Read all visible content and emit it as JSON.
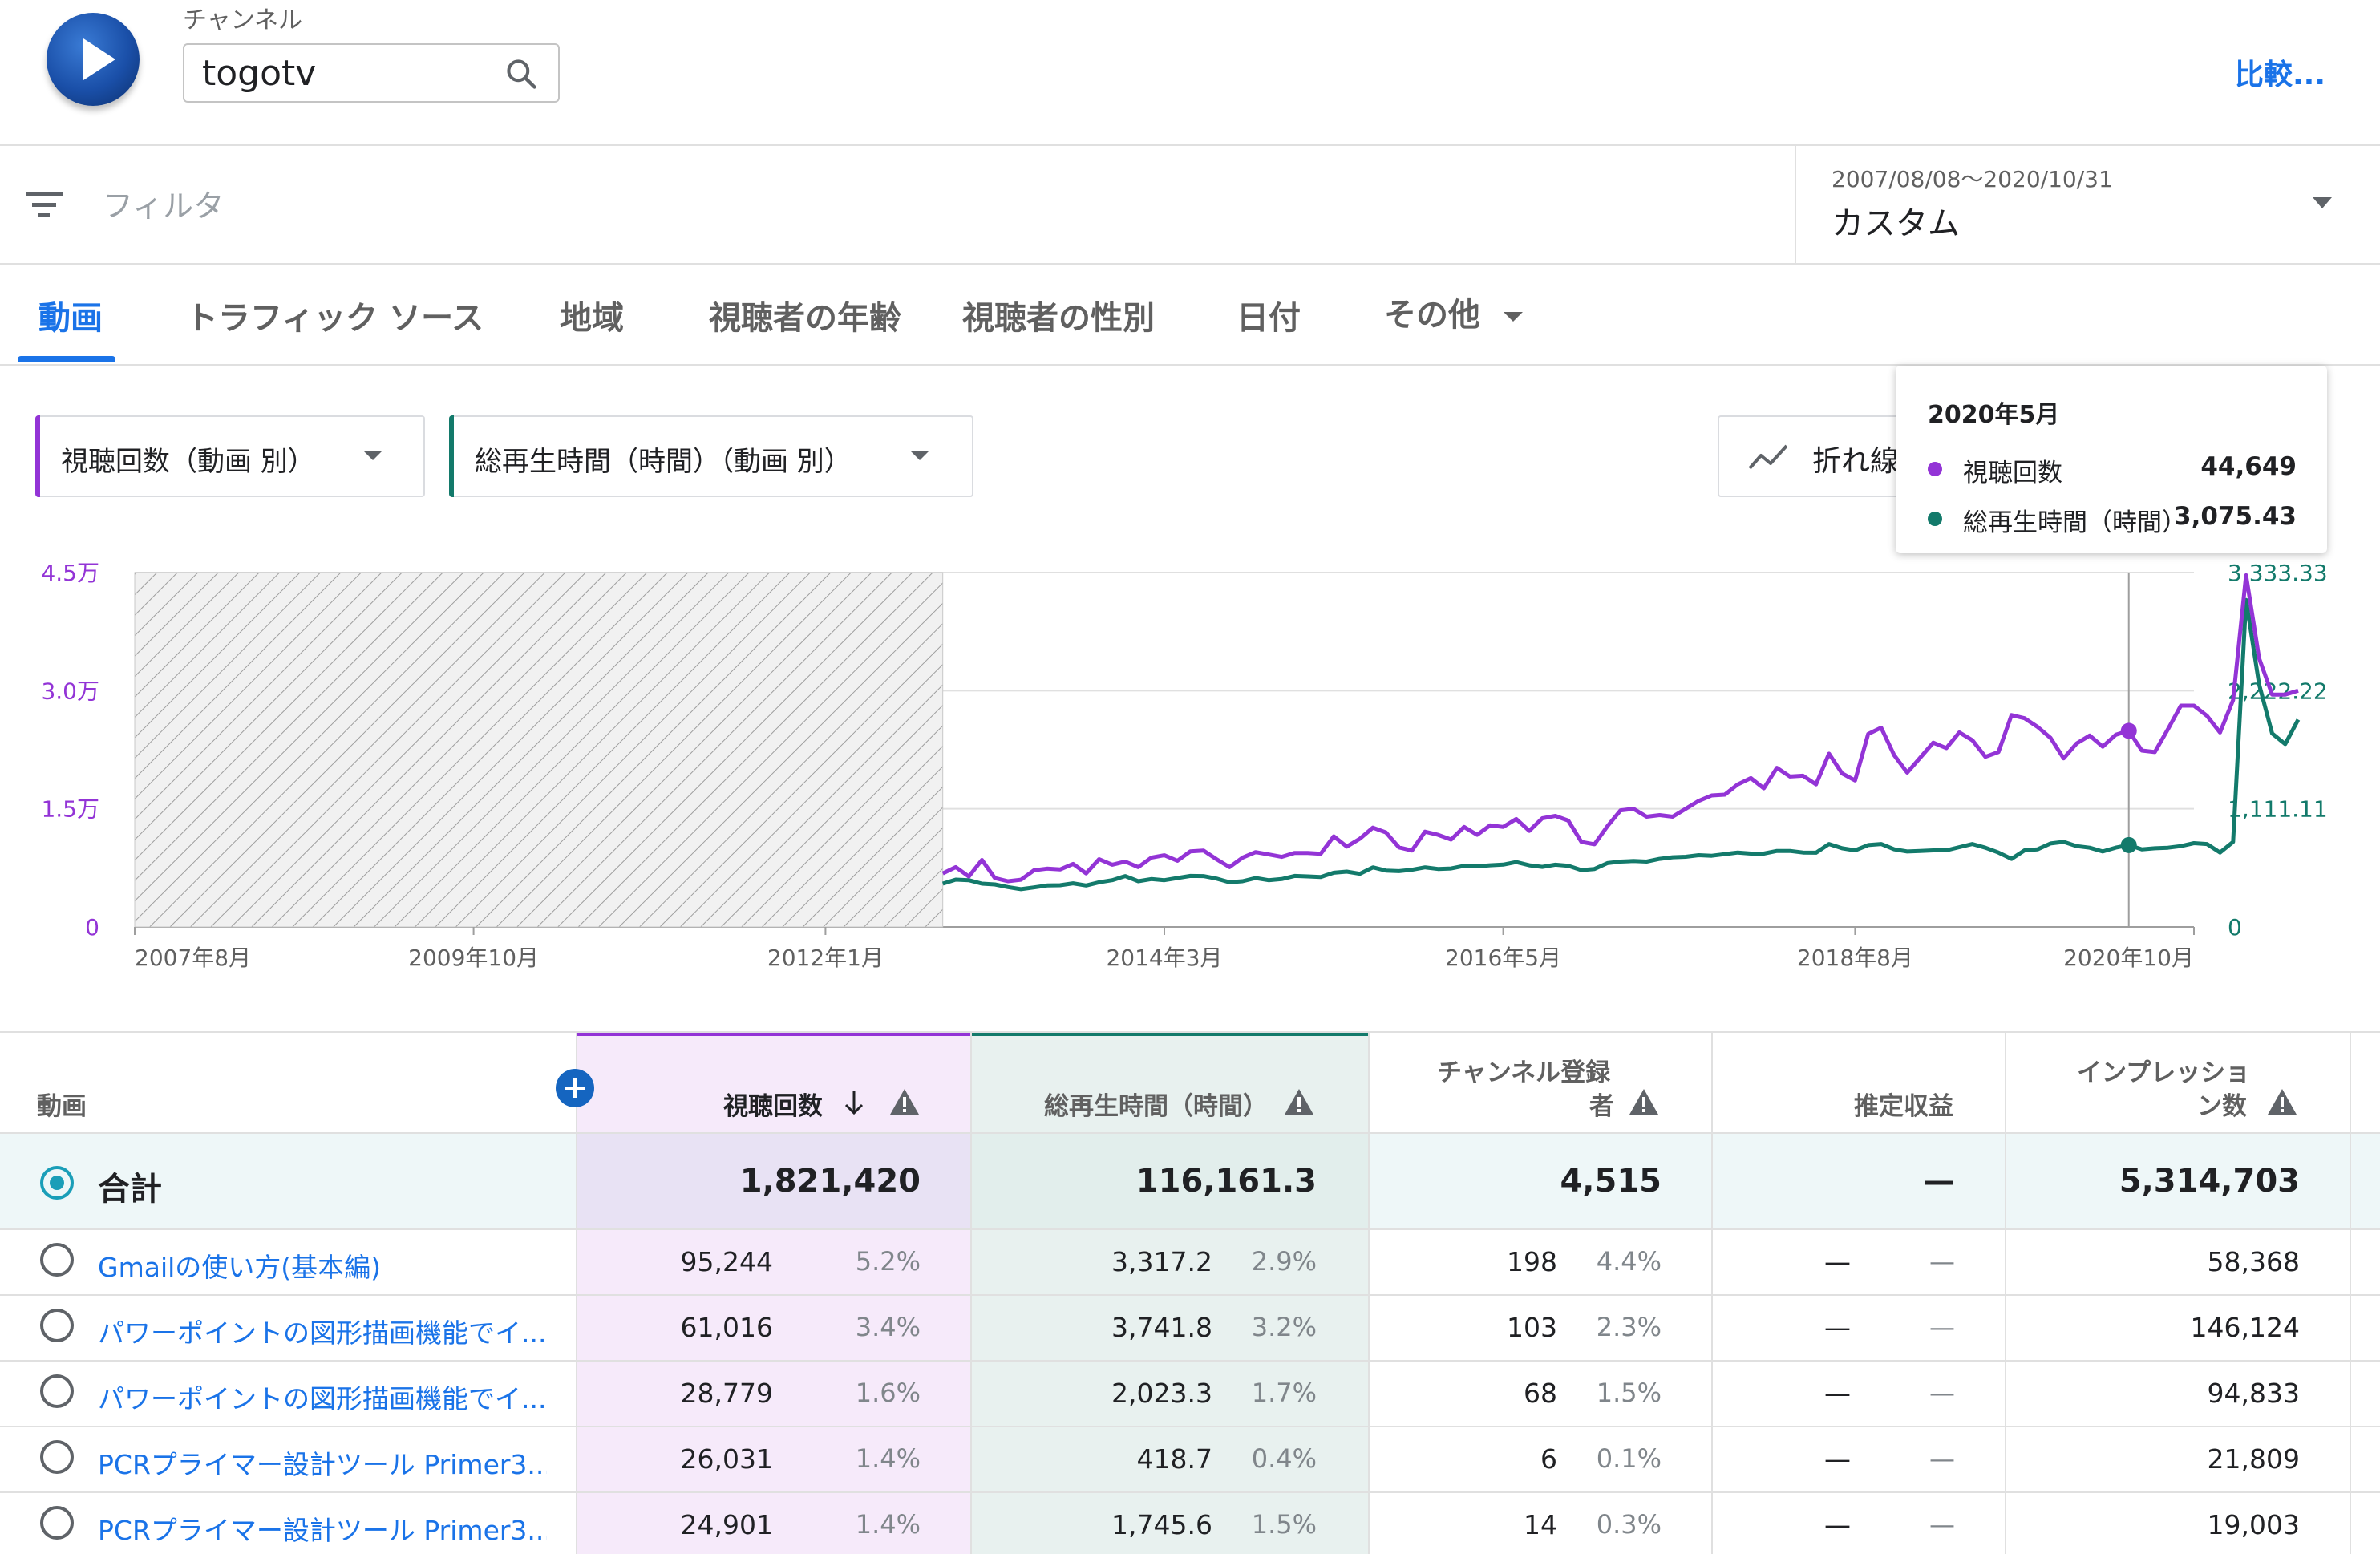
{
  "header": {
    "channel_label": "チャンネル",
    "channel_value": "togotv",
    "compare_label": "比較..."
  },
  "filter": {
    "placeholder": "フィルタ",
    "date_range": "2007/08/08〜2020/10/31",
    "date_preset": "カスタム"
  },
  "tabs": [
    "動画",
    "トラフィック ソース",
    "地域",
    "視聴者の年齢",
    "視聴者の性別",
    "日付",
    "その他"
  ],
  "metrics": {
    "primary": "視聴回数（動画 別）",
    "secondary": "総再生時間（時間）（動画 別）",
    "chart_type": "折れ線"
  },
  "colors": {
    "primary": "#9334d6",
    "secondary": "#137a6b",
    "link": "#1a73e8"
  },
  "tooltip": {
    "title": "2020年5月",
    "rows": [
      {
        "name": "視聴回数",
        "value": "44,649"
      },
      {
        "name": "総再生時間（時間）",
        "value": "3,075.43"
      }
    ]
  },
  "chart_data": {
    "type": "line",
    "x_ticks": [
      "2007年8月",
      "2009年10月",
      "2012年1月",
      "2014年3月",
      "2016年5月",
      "2018年8月",
      "2020年10月"
    ],
    "y_left_ticks": [
      "0",
      "1.5万",
      "3.0万",
      "4.5万"
    ],
    "y_right_ticks": [
      "0",
      "1,111.11",
      "2,222.22",
      "3,333.33"
    ],
    "ylim_left": [
      0,
      45000
    ],
    "ylim_right": [
      0,
      3333.33
    ],
    "no_data_range": [
      "2007-08",
      "2012-10"
    ],
    "start": "2012-10",
    "series": [
      {
        "name": "視聴回数",
        "axis": "left",
        "values": [
          6800,
          7600,
          6400,
          8500,
          6200,
          5800,
          6000,
          7200,
          7400,
          7300,
          8000,
          6800,
          8600,
          7900,
          8300,
          7600,
          8800,
          9100,
          8400,
          9600,
          9700,
          8600,
          7600,
          8800,
          9500,
          9200,
          8900,
          9400,
          9400,
          9300,
          11500,
          10200,
          11200,
          12600,
          12000,
          10100,
          9700,
          12100,
          11700,
          11100,
          12700,
          11700,
          12900,
          12700,
          13700,
          12200,
          13800,
          14100,
          13500,
          10800,
          10500,
          12800,
          14800,
          15000,
          14000,
          14200,
          14000,
          15000,
          16000,
          16700,
          16800,
          18100,
          18900,
          17600,
          20200,
          19100,
          19200,
          18100,
          22000,
          19500,
          18600,
          24500,
          25300,
          21800,
          19600,
          21500,
          23400,
          22700,
          24700,
          23700,
          21600,
          22200,
          26900,
          26500,
          25400,
          24000,
          21400,
          23300,
          24300,
          22900,
          24400,
          24900,
          22400,
          22200,
          25100,
          28100,
          28100,
          26800,
          24700,
          28800,
          44649,
          34100,
          29500,
          29500,
          30000
        ]
      },
      {
        "name": "総再生時間（時間）",
        "axis": "right",
        "values": [
          407,
          445,
          440,
          407,
          400,
          375,
          355,
          372,
          390,
          392,
          410,
          390,
          420,
          440,
          478,
          430,
          450,
          440,
          460,
          480,
          478,
          455,
          420,
          430,
          460,
          440,
          450,
          480,
          475,
          470,
          510,
          520,
          500,
          560,
          530,
          525,
          538,
          560,
          545,
          550,
          575,
          570,
          580,
          586,
          610,
          580,
          565,
          585,
          575,
          535,
          545,
          600,
          615,
          620,
          615,
          640,
          655,
          660,
          675,
          670,
          685,
          700,
          690,
          690,
          715,
          715,
          700,
          698,
          780,
          740,
          720,
          770,
          780,
          730,
          710,
          715,
          720,
          720,
          750,
          780,
          745,
          700,
          640,
          720,
          730,
          785,
          800,
          760,
          745,
          710,
          746,
          770,
          730,
          740,
          745,
          760,
          788,
          780,
          700,
          800,
          3075,
          2280,
          1820,
          1720,
          1950
        ]
      }
    ]
  },
  "table": {
    "headers": {
      "video": "動画",
      "views": "視聴回数",
      "watch_time": "総再生時間（時間）",
      "subscribers_line1": "チャンネル登録",
      "subscribers_line2": "者",
      "revenue": "推定収益",
      "impressions_line1": "インプレッショ",
      "impressions_line2": "ン数"
    },
    "total": {
      "label": "合計",
      "views": "1,821,420",
      "watch_time": "116,161.3",
      "subscribers": "4,515",
      "revenue": "—",
      "impressions": "5,314,703"
    },
    "rows": [
      {
        "title": "Gmailの使い方(基本編)",
        "views": "95,244",
        "views_pct": "5.2%",
        "watch": "3,317.2",
        "watch_pct": "2.9%",
        "subs": "198",
        "subs_pct": "4.4%",
        "rev": "—",
        "rev_pct": "—",
        "impr": "58,368"
      },
      {
        "title": "パワーポイントの図形描画機能でイ...",
        "views": "61,016",
        "views_pct": "3.4%",
        "watch": "3,741.8",
        "watch_pct": "3.2%",
        "subs": "103",
        "subs_pct": "2.3%",
        "rev": "—",
        "rev_pct": "—",
        "impr": "146,124"
      },
      {
        "title": "パワーポイントの図形描画機能でイ...",
        "views": "28,779",
        "views_pct": "1.6%",
        "watch": "2,023.3",
        "watch_pct": "1.7%",
        "subs": "68",
        "subs_pct": "1.5%",
        "rev": "—",
        "rev_pct": "—",
        "impr": "94,833"
      },
      {
        "title": "PCRプライマー設計ツール Primer3...",
        "views": "26,031",
        "views_pct": "1.4%",
        "watch": "418.7",
        "watch_pct": "0.4%",
        "subs": "6",
        "subs_pct": "0.1%",
        "rev": "—",
        "rev_pct": "—",
        "impr": "21,809"
      },
      {
        "title": "PCRプライマー設計ツール Primer3...",
        "views": "24,901",
        "views_pct": "1.4%",
        "watch": "1,745.6",
        "watch_pct": "1.5%",
        "subs": "14",
        "subs_pct": "0.3%",
        "rev": "—",
        "rev_pct": "—",
        "impr": "19,003"
      }
    ]
  }
}
